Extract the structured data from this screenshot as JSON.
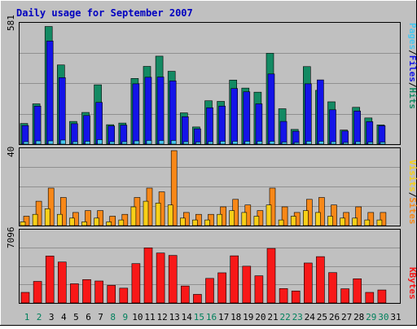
{
  "chart_data": [
    {
      "type": "bar",
      "title": "Daily usage for September 2007",
      "panel": "pages-files-hits",
      "categories": [
        "1",
        "2",
        "3",
        "4",
        "5",
        "6",
        "7",
        "8",
        "9",
        "10",
        "11",
        "12",
        "13",
        "14",
        "15",
        "16",
        "17",
        "18",
        "19",
        "20",
        "21",
        "22",
        "23",
        "24",
        "25",
        "26",
        "27",
        "28",
        "29",
        "30",
        "31"
      ],
      "ymax_label": "581",
      "ylim": [
        0,
        581
      ],
      "legend": [
        "Pages",
        "/",
        "Files",
        "/",
        "Hits"
      ],
      "series": [
        {
          "name": "Hits",
          "color": "#138a63",
          "values": [
            101,
            197,
            575,
            387,
            111,
            155,
            290,
            95,
            103,
            321,
            380,
            430,
            356,
            153,
            84,
            212,
            209,
            313,
            274,
            254,
            444,
            173,
            72,
            379,
            263,
            207,
            69,
            180,
            128,
            94,
            0
          ]
        },
        {
          "name": "Files",
          "color": "#1414e8",
          "values": [
            91,
            186,
            504,
            325,
            100,
            140,
            204,
            89,
            93,
            295,
            327,
            328,
            309,
            134,
            75,
            178,
            186,
            272,
            256,
            197,
            343,
            111,
            63,
            295,
            314,
            168,
            64,
            162,
            110,
            90,
            0
          ]
        },
        {
          "name": "Pages",
          "color": "#46c6f0",
          "values": [
            12,
            16,
            16,
            20,
            12,
            14,
            22,
            12,
            12,
            16,
            18,
            18,
            18,
            12,
            10,
            12,
            14,
            14,
            14,
            14,
            14,
            10,
            8,
            14,
            14,
            12,
            8,
            12,
            10,
            10,
            0
          ]
        }
      ]
    },
    {
      "type": "bar",
      "panel": "visits-sites",
      "categories": [
        "1",
        "2",
        "3",
        "4",
        "5",
        "6",
        "7",
        "8",
        "9",
        "10",
        "11",
        "12",
        "13",
        "14",
        "15",
        "16",
        "17",
        "18",
        "19",
        "20",
        "21",
        "22",
        "23",
        "24",
        "25",
        "26",
        "27",
        "28",
        "29",
        "30",
        "31"
      ],
      "ymax_label": "40",
      "ylim": [
        0,
        40
      ],
      "legend": [
        "Visits",
        "/",
        "Sites"
      ],
      "series": [
        {
          "name": "Visits",
          "color": "#f8d018",
          "values": [
            2,
            6,
            9,
            6,
            4,
            2,
            4,
            2,
            3,
            10,
            13,
            12,
            11,
            4,
            3,
            3,
            6,
            8,
            7,
            5,
            11,
            3,
            5,
            8,
            7,
            5,
            4,
            4,
            3,
            3,
            0
          ]
        },
        {
          "name": "Sites",
          "color": "#f88818",
          "values": [
            5,
            13,
            20,
            15,
            7,
            8,
            8,
            5,
            6,
            15,
            20,
            18,
            40,
            7,
            6,
            6,
            10,
            14,
            11,
            8,
            20,
            10,
            7,
            14,
            15,
            11,
            7,
            10,
            7,
            7,
            0
          ]
        }
      ]
    },
    {
      "type": "bar",
      "panel": "kbytes",
      "categories": [
        "1",
        "2",
        "3",
        "4",
        "5",
        "6",
        "7",
        "8",
        "9",
        "10",
        "11",
        "12",
        "13",
        "14",
        "15",
        "16",
        "17",
        "18",
        "19",
        "20",
        "21",
        "22",
        "23",
        "24",
        "25",
        "26",
        "27",
        "28",
        "29",
        "30",
        "31"
      ],
      "ymax_label": "7096",
      "ylim": [
        0,
        7096
      ],
      "legend": [
        "KBytes"
      ],
      "series": [
        {
          "name": "KBytes",
          "color": "#f81818",
          "values": [
            1060,
            2160,
            4700,
            4100,
            1920,
            2340,
            2200,
            1760,
            1480,
            3940,
            5520,
            5000,
            4760,
            1700,
            860,
            2460,
            3020,
            4720,
            3680,
            2720,
            5460,
            1440,
            1200,
            4000,
            4640,
            3040,
            1420,
            2420,
            1060,
            1300,
            0
          ]
        }
      ]
    }
  ],
  "x_label_colors": {
    "weekday": "#000000",
    "weekend": "#00805c"
  },
  "weekend_days": [
    1,
    2,
    8,
    9,
    15,
    16,
    22,
    23,
    29,
    30
  ],
  "colors": {
    "background": "#c0c0c0",
    "title": "#0000c0",
    "grid": "#909090"
  }
}
